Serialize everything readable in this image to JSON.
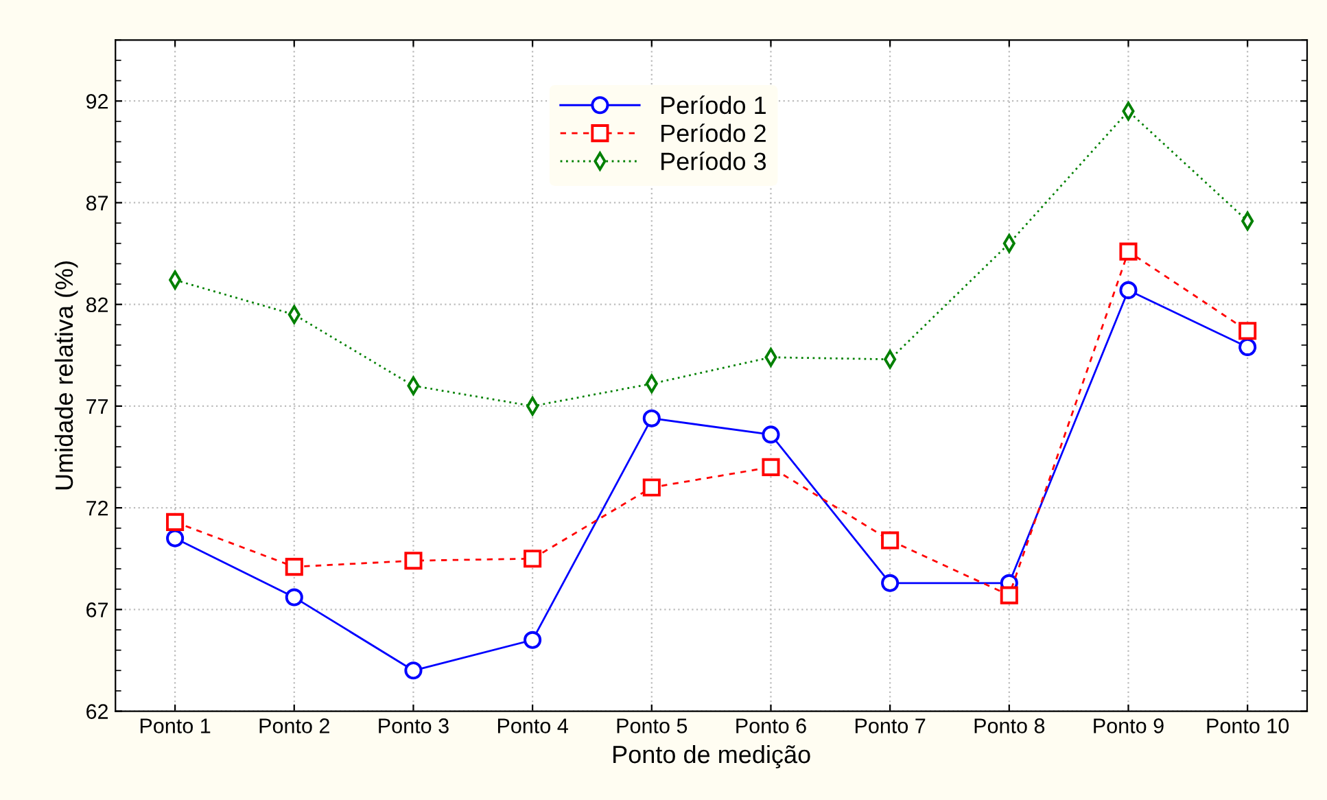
{
  "chart_data": {
    "type": "line",
    "xlabel": "Ponto de medição",
    "ylabel": "Umidade relativa (%)",
    "categories": [
      "Ponto 1",
      "Ponto 2",
      "Ponto 3",
      "Ponto 4",
      "Ponto 5",
      "Ponto 6",
      "Ponto 7",
      "Ponto 8",
      "Ponto 9",
      "Ponto 10"
    ],
    "series": [
      {
        "name": "Período 1",
        "color": "#0000ff",
        "marker": "circle",
        "line_style": "solid",
        "values": [
          70.5,
          67.6,
          64.0,
          65.5,
          76.4,
          75.6,
          68.3,
          68.3,
          82.7,
          79.9
        ]
      },
      {
        "name": "Período 2",
        "color": "#ff0000",
        "marker": "square",
        "line_style": "dashed",
        "values": [
          71.3,
          69.1,
          69.4,
          69.5,
          73.0,
          74.0,
          70.4,
          67.7,
          84.6,
          80.7
        ]
      },
      {
        "name": "Período 3",
        "color": "#008000",
        "marker": "diamond",
        "line_style": "dotted",
        "values": [
          83.2,
          81.5,
          78.0,
          77.0,
          78.1,
          79.4,
          79.3,
          85.0,
          91.5,
          86.1
        ]
      }
    ],
    "ylim": [
      62,
      95
    ],
    "yticks": [
      62,
      67,
      72,
      77,
      82,
      87,
      92
    ],
    "grid": true,
    "legend": "top"
  }
}
